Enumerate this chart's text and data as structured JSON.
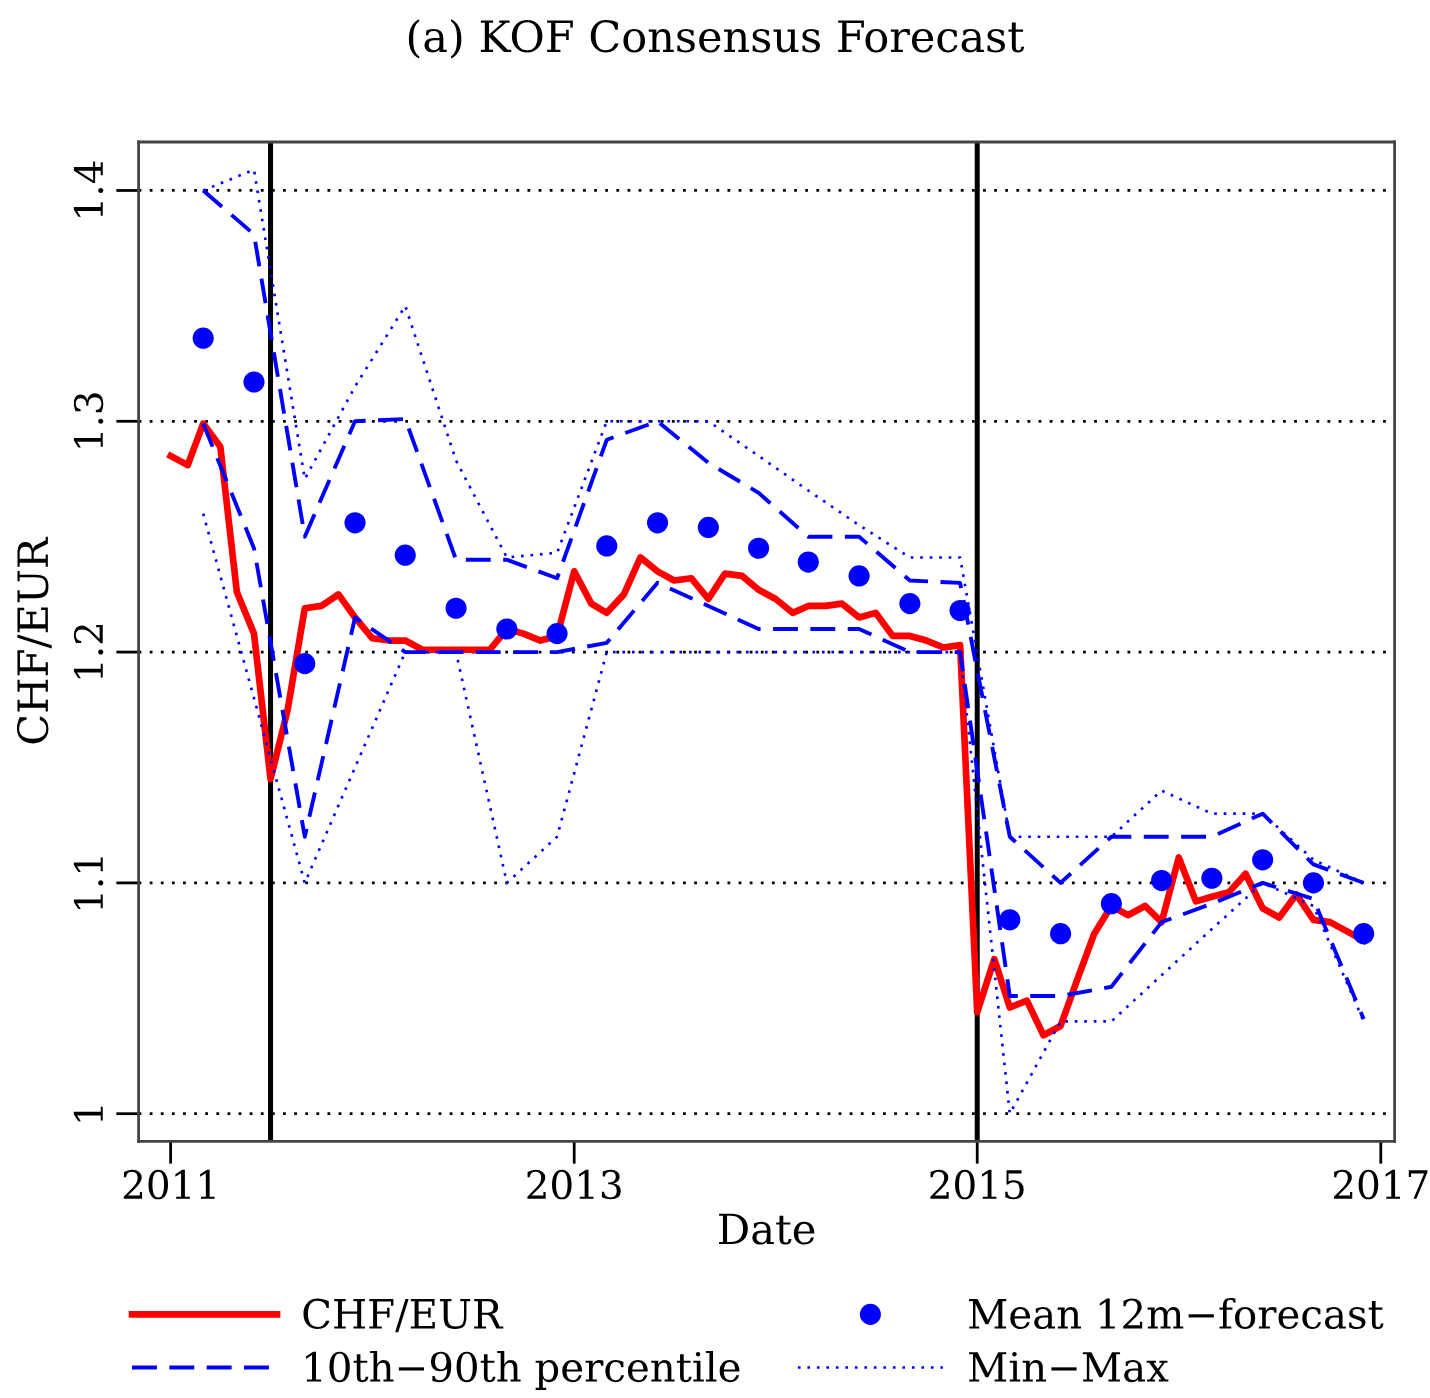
{
  "chart_data": {
    "type": "line",
    "title": "(a) KOF Consensus Forecast",
    "xlabel": "Date",
    "ylabel": "CHF/EUR",
    "xlim": [
      "2010-11-04",
      "2017-01-26"
    ],
    "xticks": [
      "2011",
      "2013",
      "2015",
      "2017"
    ],
    "ylim": [
      0.988,
      1.421
    ],
    "yticks": [
      1,
      1.1,
      1.2,
      1.3,
      1.4
    ],
    "grid": "y",
    "legend": "bottom",
    "ref_lines": [
      {
        "axis": "x",
        "value": "2011-07",
        "color": "#000000",
        "line_style": "solid"
      },
      {
        "axis": "x",
        "value": "2015-01",
        "color": "#000000",
        "line_style": "solid"
      }
    ],
    "series": [
      {
        "name": "CHF/EUR",
        "color": "#ff0000",
        "line_style": "solid",
        "x": [
          "2011-01",
          "2011-02",
          "2011-03",
          "2011-04",
          "2011-05",
          "2011-06",
          "2011-07",
          "2011-08",
          "2011-09",
          "2011-10",
          "2011-11",
          "2011-12",
          "2012-01",
          "2012-02",
          "2012-03",
          "2012-04",
          "2012-05",
          "2012-06",
          "2012-07",
          "2012-08",
          "2012-09",
          "2012-10",
          "2012-11",
          "2012-12",
          "2013-01",
          "2013-02",
          "2013-03",
          "2013-04",
          "2013-05",
          "2013-06",
          "2013-07",
          "2013-08",
          "2013-09",
          "2013-10",
          "2013-11",
          "2013-12",
          "2014-01",
          "2014-02",
          "2014-03",
          "2014-04",
          "2014-05",
          "2014-06",
          "2014-07",
          "2014-08",
          "2014-09",
          "2014-10",
          "2014-11",
          "2014-12",
          "2015-01",
          "2015-02",
          "2015-03",
          "2015-04",
          "2015-05",
          "2015-06",
          "2015-07",
          "2015-08",
          "2015-09",
          "2015-10",
          "2015-11",
          "2015-12",
          "2016-01",
          "2016-02",
          "2016-03",
          "2016-04",
          "2016-05",
          "2016-06",
          "2016-07",
          "2016-08",
          "2016-09",
          "2016-10",
          "2016-11",
          "2016-12"
        ],
        "values": [
          1.285,
          1.281,
          1.299,
          1.289,
          1.226,
          1.208,
          1.145,
          1.175,
          1.219,
          1.22,
          1.225,
          1.215,
          1.206,
          1.205,
          1.205,
          1.201,
          1.201,
          1.201,
          1.201,
          1.201,
          1.21,
          1.208,
          1.205,
          1.207,
          1.235,
          1.221,
          1.217,
          1.225,
          1.241,
          1.235,
          1.231,
          1.232,
          1.223,
          1.234,
          1.233,
          1.227,
          1.223,
          1.217,
          1.22,
          1.22,
          1.221,
          1.215,
          1.217,
          1.207,
          1.207,
          1.205,
          1.202,
          1.203,
          1.044,
          1.067,
          1.046,
          1.049,
          1.034,
          1.038,
          1.058,
          1.078,
          1.09,
          1.086,
          1.09,
          1.083,
          1.111,
          1.092,
          1.094,
          1.096,
          1.104,
          1.089,
          1.085,
          1.095,
          1.084,
          1.083,
          1.079,
          1.075
        ]
      },
      {
        "name": "10th−90th percentile",
        "color": "#0000ff",
        "line_style": "dashed",
        "x": [
          "2011-03",
          "2011-06",
          "2011-09",
          "2011-12",
          "2012-03",
          "2012-06",
          "2012-09",
          "2012-12",
          "2013-03",
          "2013-06",
          "2013-09",
          "2013-12",
          "2014-03",
          "2014-06",
          "2014-09",
          "2014-12",
          "2015-03",
          "2015-06",
          "2015-09",
          "2015-12",
          "2016-03",
          "2016-06",
          "2016-09",
          "2016-12"
        ],
        "values": [
          1.4,
          1.381,
          1.25,
          1.3,
          1.301,
          1.24,
          1.24,
          1.232,
          1.292,
          1.3,
          1.282,
          1.269,
          1.25,
          1.25,
          1.231,
          1.23,
          1.12,
          1.1,
          1.12,
          1.12,
          1.12,
          1.13,
          1.108,
          1.1
        ]
      },
      {
        "name": "Mean 12m−forecast",
        "type": "scatter",
        "color": "#0000ff",
        "marker": "circle",
        "x": [
          "2011-03",
          "2011-06",
          "2011-09",
          "2011-12",
          "2012-03",
          "2012-06",
          "2012-09",
          "2012-12",
          "2013-03",
          "2013-06",
          "2013-09",
          "2013-12",
          "2014-03",
          "2014-06",
          "2014-09",
          "2014-12",
          "2015-03",
          "2015-06",
          "2015-09",
          "2015-12",
          "2016-03",
          "2016-06",
          "2016-09",
          "2016-12"
        ],
        "values": [
          1.336,
          1.317,
          1.195,
          1.256,
          1.242,
          1.219,
          1.21,
          1.208,
          1.246,
          1.256,
          1.254,
          1.245,
          1.239,
          1.233,
          1.221,
          1.218,
          1.084,
          1.078,
          1.091,
          1.101,
          1.102,
          1.11,
          1.1,
          1.078
        ]
      },
      {
        "name": "Min−Max",
        "color": "#0000ff",
        "line_style": "dotted",
        "x": [
          "2011-03",
          "2011-06",
          "2011-09",
          "2011-12",
          "2012-03",
          "2012-06",
          "2012-09",
          "2012-12",
          "2013-03",
          "2013-06",
          "2013-09",
          "2013-12",
          "2014-03",
          "2014-06",
          "2014-09",
          "2014-12",
          "2015-03",
          "2015-06",
          "2015-09",
          "2015-12",
          "2016-03",
          "2016-06",
          "2016-09",
          "2016-12"
        ],
        "values": [
          1.4,
          1.409,
          1.275,
          1.315,
          1.35,
          1.283,
          1.241,
          1.243,
          1.3,
          1.3,
          1.3,
          1.285,
          1.27,
          1.255,
          1.241,
          1.241,
          1.12,
          1.12,
          1.12,
          1.14,
          1.13,
          1.13,
          1.11,
          1.1
        ]
      },
      {
        "color": "#0000ff",
        "line_style": "dashed",
        "x": [
          "2011-03",
          "2011-06",
          "2011-09",
          "2011-12",
          "2012-03",
          "2012-06",
          "2012-09",
          "2012-12",
          "2013-03",
          "2013-06",
          "2013-09",
          "2013-12",
          "2014-03",
          "2014-06",
          "2014-09",
          "2014-12",
          "2015-03",
          "2015-06",
          "2015-09",
          "2015-12",
          "2016-03",
          "2016-06",
          "2016-09",
          "2016-12"
        ],
        "values": [
          1.299,
          1.245,
          1.12,
          1.215,
          1.2,
          1.2,
          1.2,
          1.2,
          1.204,
          1.23,
          1.22,
          1.21,
          1.21,
          1.21,
          1.2,
          1.2,
          1.051,
          1.051,
          1.055,
          1.083,
          1.091,
          1.1,
          1.093,
          1.041
        ]
      },
      {
        "color": "#0000ff",
        "line_style": "dotted",
        "x": [
          "2011-03",
          "2011-06",
          "2011-09",
          "2011-12",
          "2012-03",
          "2012-06",
          "2012-09",
          "2012-12",
          "2013-03",
          "2013-06",
          "2013-09",
          "2013-12",
          "2014-03",
          "2014-06",
          "2014-09",
          "2014-12",
          "2015-03",
          "2015-06",
          "2015-09",
          "2015-12",
          "2016-03",
          "2016-06",
          "2016-09",
          "2016-12"
        ],
        "values": [
          1.26,
          1.18,
          1.1,
          1.15,
          1.2,
          1.2,
          1.1,
          1.12,
          1.2,
          1.2,
          1.2,
          1.2,
          1.2,
          1.2,
          1.2,
          1.2,
          1.0,
          1.04,
          1.04,
          1.06,
          1.08,
          1.1,
          1.09,
          1.04
        ]
      }
    ]
  }
}
